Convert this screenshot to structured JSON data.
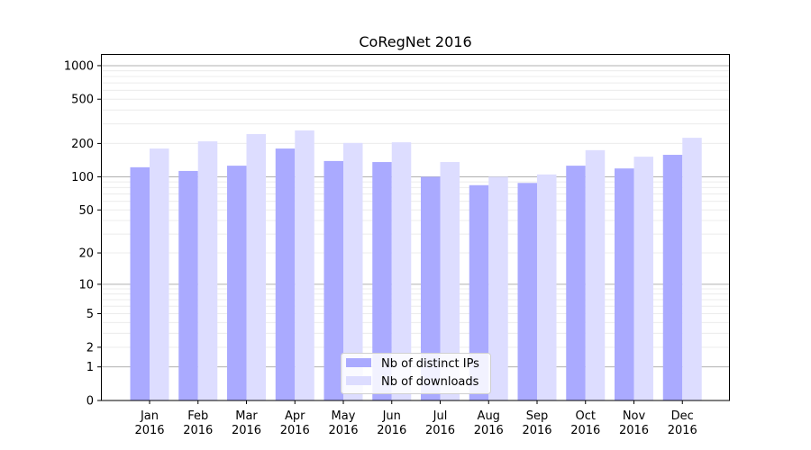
{
  "chart_data": {
    "type": "bar",
    "title": "CoRegNet 2016",
    "xlabel": "",
    "ylabel": "",
    "yscale": "symlog (log of 1+value)",
    "ylim": [
      0,
      1200
    ],
    "yticks": [
      0,
      1,
      2,
      5,
      10,
      20,
      50,
      100,
      200,
      500,
      1000
    ],
    "grid": true,
    "legend_position": "bottom-center",
    "categories": [
      "Jan\n2016",
      "Feb\n2016",
      "Mar\n2016",
      "Apr\n2016",
      "May\n2016",
      "Jun\n2016",
      "Jul\n2016",
      "Aug\n2016",
      "Sep\n2016",
      "Oct\n2016",
      "Nov\n2016",
      "Dec\n2016"
    ],
    "series": [
      {
        "name": "Nb of distinct IPs",
        "color": "#aaaaff",
        "values": [
          122,
          113,
          126,
          180,
          139,
          136,
          100,
          84,
          88,
          126,
          119,
          158
        ]
      },
      {
        "name": "Nb of downloads",
        "color": "#ddddff",
        "values": [
          180,
          209,
          243,
          262,
          202,
          205,
          136,
          100,
          105,
          174,
          152,
          225
        ]
      }
    ]
  }
}
